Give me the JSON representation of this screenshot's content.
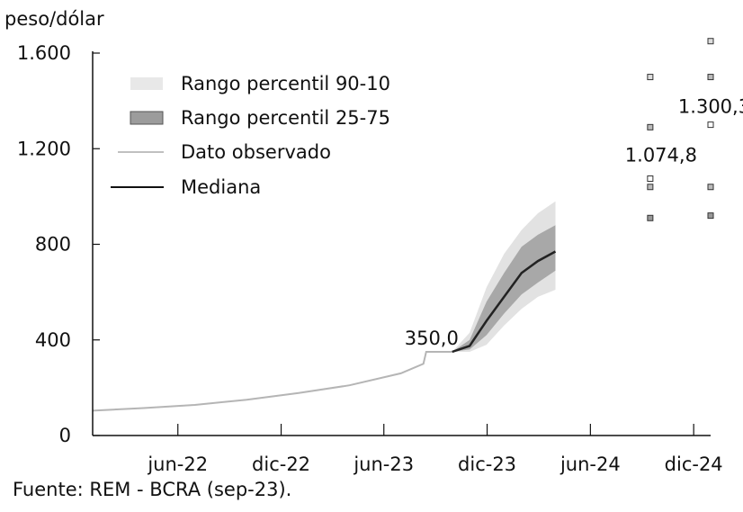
{
  "chart_data": {
    "type": "line",
    "ylabel": "peso/dólar",
    "ylim": [
      0,
      1600
    ],
    "yticks": [
      0,
      400,
      800,
      1200,
      1600
    ],
    "ytick_labels": [
      "0",
      "400",
      "800",
      "1.200",
      "1.600"
    ],
    "xlim": [
      "2022-01-01",
      "2024-12-31"
    ],
    "xticks": [
      "2022-06-01",
      "2022-12-01",
      "2023-06-01",
      "2023-12-01",
      "2024-06-01",
      "2024-12-01"
    ],
    "xtick_labels": [
      "jun-22",
      "dic-22",
      "jun-23",
      "dic-23",
      "jun-24",
      "dic-24"
    ],
    "grid": false,
    "legend_position": "top-left",
    "legend": [
      {
        "label": "Rango percentil 90-10",
        "style": "band-light"
      },
      {
        "label": "Rango percentil 25-75",
        "style": "band-dark"
      },
      {
        "label": "Dato observado",
        "style": "line-light"
      },
      {
        "label": "Mediana",
        "style": "line-dark"
      }
    ],
    "series": [
      {
        "name": "Dato observado",
        "x": [
          "2022-01-01",
          "2022-04-01",
          "2022-07-01",
          "2022-10-01",
          "2023-01-01",
          "2023-04-01",
          "2023-07-01",
          "2023-08-10",
          "2023-08-15",
          "2023-09-30"
        ],
        "y": [
          104,
          115,
          128,
          150,
          178,
          210,
          260,
          300,
          350,
          350
        ]
      },
      {
        "name": "Mediana",
        "x": [
          "2023-09-30",
          "2023-10-31",
          "2023-11-30",
          "2023-12-31",
          "2024-01-31",
          "2024-02-29",
          "2024-03-31"
        ],
        "y": [
          350,
          375,
          480,
          580,
          680,
          730,
          770
        ]
      },
      {
        "name": "Rango percentil 25-75",
        "x": [
          "2023-09-30",
          "2023-10-31",
          "2023-11-30",
          "2023-12-31",
          "2024-01-31",
          "2024-02-29",
          "2024-03-31"
        ],
        "low": [
          350,
          360,
          420,
          510,
          590,
          640,
          690
        ],
        "high": [
          350,
          400,
          560,
          680,
          790,
          840,
          880
        ]
      },
      {
        "name": "Rango percentil 90-10",
        "x": [
          "2023-09-30",
          "2023-10-31",
          "2023-11-30",
          "2023-12-31",
          "2024-01-31",
          "2024-02-29",
          "2024-03-31"
        ],
        "low": [
          350,
          350,
          380,
          460,
          530,
          580,
          610
        ],
        "high": [
          350,
          430,
          620,
          760,
          860,
          930,
          980
        ]
      }
    ],
    "points": [
      {
        "x": "2024-09-15",
        "label": "1.074,8",
        "median": 1074.8,
        "p25": 1040,
        "p75": 1290,
        "p10": 910,
        "p90": 1500
      },
      {
        "x": "2024-12-31",
        "label": "1.300,3",
        "median": 1300.3,
        "p25": 1040,
        "p75": 1500,
        "p10": 920,
        "p90": 1650
      }
    ],
    "annotations": [
      {
        "x": "2023-08-15",
        "y": 350,
        "text": "350,0"
      }
    ]
  },
  "source": "Fuente: REM - BCRA (sep-23)."
}
